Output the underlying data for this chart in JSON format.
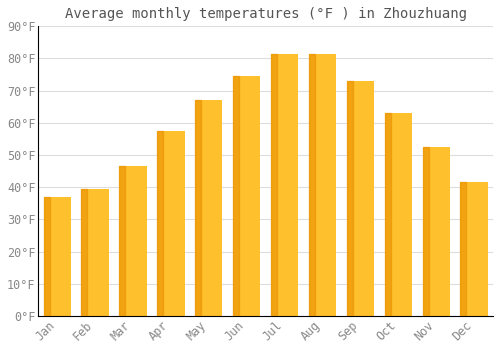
{
  "title": "Average monthly temperatures (°F ) in Zhouzhuang",
  "months": [
    "Jan",
    "Feb",
    "Mar",
    "Apr",
    "May",
    "Jun",
    "Jul",
    "Aug",
    "Sep",
    "Oct",
    "Nov",
    "Dec"
  ],
  "values": [
    37,
    39.5,
    46.5,
    57.5,
    67,
    74.5,
    81.5,
    81.5,
    73,
    63,
    52.5,
    41.5
  ],
  "bar_color_face": "#FFC02E",
  "bar_shadow_color": "#E89000",
  "background_color": "#FFFFFF",
  "grid_color": "#DDDDDD",
  "text_color": "#888888",
  "title_color": "#555555",
  "ylim": [
    0,
    90
  ],
  "yticks": [
    0,
    10,
    20,
    30,
    40,
    50,
    60,
    70,
    80,
    90
  ],
  "ytick_labels": [
    "0°F",
    "10°F",
    "20°F",
    "30°F",
    "40°F",
    "50°F",
    "60°F",
    "70°F",
    "80°F",
    "90°F"
  ],
  "title_fontsize": 10,
  "tick_fontsize": 8.5,
  "font_family": "monospace"
}
